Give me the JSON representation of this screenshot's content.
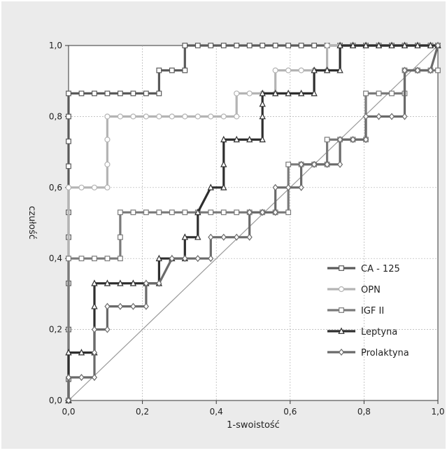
{
  "chart_data": {
    "type": "line",
    "title": "",
    "xlabel": "1-swoistość",
    "ylabel": "czułość",
    "xlim": [
      0,
      1
    ],
    "ylim": [
      0,
      1
    ],
    "x_ticks": [
      "0,0",
      "0,2",
      "0,4",
      "0,6",
      "0,8",
      "1,0"
    ],
    "y_ticks": [
      "0,0",
      "0,2",
      "0,4",
      "0,6",
      "0,8",
      "1,0"
    ],
    "grid": true,
    "legend_position": "bottom-right",
    "reference_line": {
      "x": [
        0,
        1
      ],
      "y": [
        0,
        1
      ],
      "color": "#9a9a9a"
    },
    "series": [
      {
        "name": "CA - 125",
        "marker": "square",
        "color": "#5a5a5a",
        "x": [
          0,
          0,
          0,
          0,
          0,
          0,
          0,
          0,
          0,
          0,
          0.035,
          0.07,
          0.105,
          0.14,
          0.175,
          0.21,
          0.245,
          0.245,
          0.28,
          0.315,
          0.315,
          0.35,
          0.385,
          0.42,
          0.455,
          0.49,
          0.525,
          0.56,
          0.595,
          0.63,
          0.665,
          0.7,
          0.735,
          0.77,
          0.805,
          0.84,
          0.875,
          0.91,
          0.945,
          0.98,
          1.0
        ],
        "y": [
          0,
          0.06,
          0.2,
          0.33,
          0.46,
          0.53,
          0.66,
          0.73,
          0.8,
          0.865,
          0.865,
          0.865,
          0.865,
          0.865,
          0.865,
          0.865,
          0.865,
          0.93,
          0.93,
          0.93,
          1.0,
          1.0,
          1.0,
          1.0,
          1.0,
          1.0,
          1.0,
          1.0,
          1.0,
          1.0,
          1.0,
          1.0,
          1.0,
          1.0,
          1.0,
          1.0,
          1.0,
          1.0,
          1.0,
          1.0,
          1.0
        ]
      },
      {
        "name": "OPN",
        "marker": "circle",
        "color": "#b4b4b4",
        "x": [
          0,
          0,
          0.035,
          0.07,
          0.105,
          0.105,
          0.105,
          0.105,
          0.14,
          0.175,
          0.21,
          0.245,
          0.28,
          0.315,
          0.35,
          0.385,
          0.42,
          0.455,
          0.455,
          0.49,
          0.525,
          0.56,
          0.56,
          0.595,
          0.63,
          0.665,
          0.7,
          0.7,
          0.735,
          0.77,
          0.805,
          0.84,
          0.875,
          0.91,
          0.945,
          0.98,
          1.0
        ],
        "y": [
          0,
          0.6,
          0.6,
          0.6,
          0.6,
          0.665,
          0.735,
          0.8,
          0.8,
          0.8,
          0.8,
          0.8,
          0.8,
          0.8,
          0.8,
          0.8,
          0.8,
          0.8,
          0.865,
          0.865,
          0.865,
          0.865,
          0.93,
          0.93,
          0.93,
          0.93,
          0.93,
          1.0,
          1.0,
          1.0,
          1.0,
          1.0,
          1.0,
          1.0,
          1.0,
          1.0,
          1.0
        ]
      },
      {
        "name": "IGF II",
        "marker": "square",
        "color": "#7a7a7a",
        "x": [
          0,
          0,
          0.035,
          0.07,
          0.105,
          0.14,
          0.14,
          0.14,
          0.175,
          0.21,
          0.245,
          0.28,
          0.315,
          0.35,
          0.385,
          0.42,
          0.455,
          0.49,
          0.525,
          0.56,
          0.595,
          0.595,
          0.63,
          0.665,
          0.7,
          0.7,
          0.735,
          0.77,
          0.805,
          0.805,
          0.84,
          0.875,
          0.91,
          0.91,
          0.945,
          0.98,
          1.0
        ],
        "y": [
          0,
          0.4,
          0.4,
          0.4,
          0.4,
          0.4,
          0.46,
          0.53,
          0.53,
          0.53,
          0.53,
          0.53,
          0.53,
          0.53,
          0.53,
          0.53,
          0.53,
          0.53,
          0.53,
          0.53,
          0.53,
          0.665,
          0.665,
          0.665,
          0.665,
          0.735,
          0.735,
          0.735,
          0.735,
          0.865,
          0.865,
          0.865,
          0.865,
          0.93,
          0.93,
          0.93,
          0.93
        ]
      },
      {
        "name": "Leptyna",
        "marker": "triangle",
        "color": "#2e2e2e",
        "x": [
          0,
          0,
          0.035,
          0.07,
          0.07,
          0.07,
          0.105,
          0.14,
          0.175,
          0.21,
          0.245,
          0.245,
          0.28,
          0.315,
          0.315,
          0.35,
          0.35,
          0.385,
          0.42,
          0.42,
          0.42,
          0.455,
          0.49,
          0.525,
          0.525,
          0.525,
          0.525,
          0.56,
          0.595,
          0.63,
          0.665,
          0.665,
          0.7,
          0.735,
          0.735,
          0.77,
          0.805,
          0.84,
          0.875,
          0.91,
          0.945,
          0.98,
          1.0
        ],
        "y": [
          0,
          0.135,
          0.135,
          0.135,
          0.265,
          0.33,
          0.33,
          0.33,
          0.33,
          0.33,
          0.33,
          0.4,
          0.4,
          0.4,
          0.46,
          0.46,
          0.53,
          0.6,
          0.6,
          0.665,
          0.735,
          0.735,
          0.735,
          0.735,
          0.8,
          0.835,
          0.865,
          0.865,
          0.865,
          0.865,
          0.865,
          0.93,
          0.93,
          0.93,
          1.0,
          1.0,
          1.0,
          1.0,
          1.0,
          1.0,
          1.0,
          1.0,
          1.0
        ]
      },
      {
        "name": "Prolaktyna",
        "marker": "diamond",
        "color": "#6a6a6a",
        "x": [
          0,
          0,
          0.035,
          0.07,
          0.07,
          0.07,
          0.105,
          0.105,
          0.14,
          0.175,
          0.21,
          0.21,
          0.245,
          0.28,
          0.315,
          0.35,
          0.385,
          0.385,
          0.42,
          0.455,
          0.49,
          0.49,
          0.525,
          0.56,
          0.56,
          0.595,
          0.63,
          0.63,
          0.665,
          0.7,
          0.735,
          0.735,
          0.77,
          0.805,
          0.805,
          0.84,
          0.875,
          0.91,
          0.91,
          0.945,
          0.98,
          1.0
        ],
        "y": [
          0,
          0.065,
          0.065,
          0.065,
          0.135,
          0.2,
          0.2,
          0.265,
          0.265,
          0.265,
          0.265,
          0.33,
          0.33,
          0.4,
          0.4,
          0.4,
          0.4,
          0.46,
          0.46,
          0.46,
          0.46,
          0.53,
          0.53,
          0.53,
          0.6,
          0.6,
          0.6,
          0.665,
          0.665,
          0.665,
          0.665,
          0.735,
          0.735,
          0.735,
          0.8,
          0.8,
          0.8,
          0.8,
          0.93,
          0.93,
          0.93,
          1.0
        ]
      }
    ]
  }
}
